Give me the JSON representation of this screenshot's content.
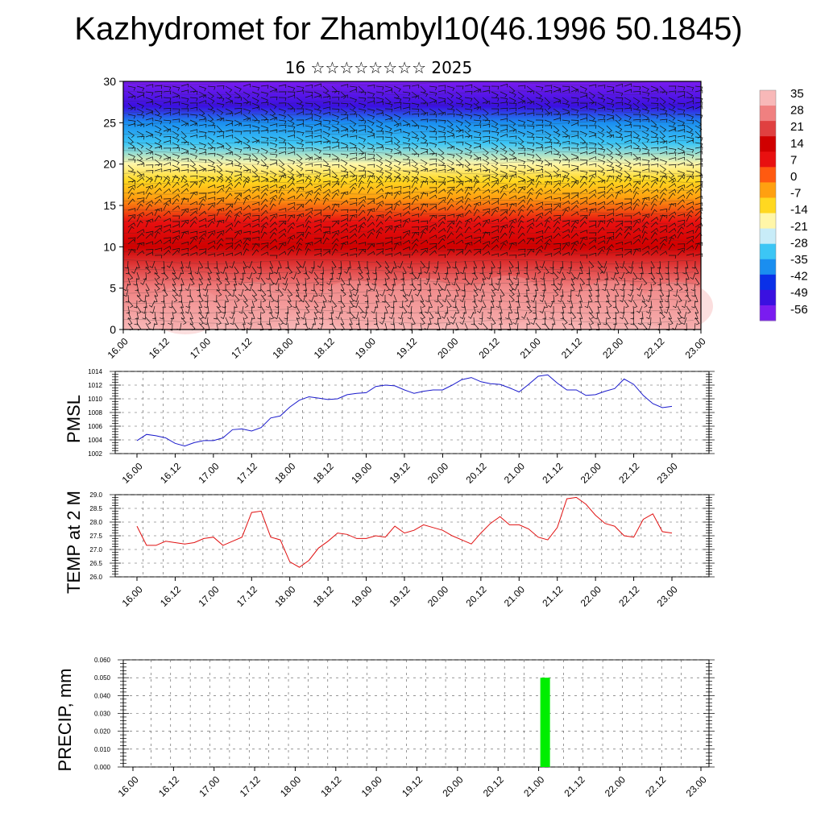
{
  "title": "Kazhydromet for Zhambyl10(46.1996 50.1845)",
  "subtitle": "16 ☆☆☆☆☆☆☆☆ 2025",
  "time_ticks": [
    "16.00",
    "16.12",
    "17.00",
    "17.12",
    "18.00",
    "18.12",
    "19.00",
    "19.12",
    "20.00",
    "20.12",
    "21.00",
    "21.12",
    "22.00",
    "22.12",
    "23.00"
  ],
  "chart_data": [
    {
      "type": "heatmap",
      "title": "",
      "xlabel": "",
      "ylabel": "",
      "x": [
        "16.00",
        "16.12",
        "17.00",
        "17.12",
        "18.00",
        "18.12",
        "19.00",
        "19.12",
        "20.00",
        "20.12",
        "21.00",
        "21.12",
        "22.00",
        "22.12",
        "23.00"
      ],
      "ylim": [
        0,
        30
      ],
      "yticks": [
        "0",
        "5",
        "10",
        "15",
        "20",
        "25",
        "30"
      ],
      "colorbar_labels": [
        "35",
        "28",
        "21",
        "14",
        "7",
        "0",
        "-7",
        "-14",
        "-21",
        "-28",
        "-35",
        "-42",
        "-49",
        "-56"
      ],
      "colors": {
        "levels": [
          "#7a1cf0",
          "#3a10e0",
          "#0a30e8",
          "#1a8ef0",
          "#3cc6f5",
          "#c8ecf8",
          "#fff6a8",
          "#ffd820",
          "#ffa010",
          "#ff5a10",
          "#e81010",
          "#d00000",
          "#e04040",
          "#f08080",
          "#f8b8b8"
        ]
      },
      "temperature_profile": [
        {
          "height": 0,
          "t": 32
        },
        {
          "height": 5,
          "t": 25
        },
        {
          "height": 10,
          "t": 14
        },
        {
          "height": 13,
          "t": 4
        },
        {
          "height": 16,
          "t": -8
        },
        {
          "height": 18,
          "t": -18
        },
        {
          "height": 20,
          "t": -32
        },
        {
          "height": 22.5,
          "t": -46
        },
        {
          "height": 25,
          "t": -56
        },
        {
          "height": 27,
          "t": -52
        },
        {
          "height": 30,
          "t": -50
        }
      ],
      "wind_barbs": "dense field over full panel"
    },
    {
      "type": "line",
      "ylabel": "PMSL",
      "ylim": [
        1002,
        1014
      ],
      "yticks": [
        "1002",
        "1004",
        "1006",
        "1008",
        "1010",
        "1012",
        "1014"
      ],
      "color": "#1a1acc",
      "values": [
        1003.9,
        1004.8,
        1004.6,
        1004.3,
        1003.5,
        1003.1,
        1003.6,
        1003.9,
        1003.9,
        1004.3,
        1005.5,
        1005.6,
        1005.3,
        1005.8,
        1007.2,
        1007.5,
        1008.8,
        1009.8,
        1010.3,
        1010.1,
        1009.9,
        1010.0,
        1010.6,
        1010.8,
        1010.9,
        1011.8,
        1012.0,
        1011.9,
        1011.3,
        1010.8,
        1011.1,
        1011.3,
        1011.3,
        1012.0,
        1012.8,
        1013.1,
        1012.5,
        1012.2,
        1012.1,
        1011.6,
        1011.0,
        1012.1,
        1013.3,
        1013.5,
        1012.3,
        1011.3,
        1011.3,
        1010.5,
        1010.6,
        1011.1,
        1011.5,
        1012.9,
        1012.1,
        1010.5,
        1009.3,
        1008.7,
        1008.9
      ]
    },
    {
      "type": "line",
      "ylabel": "TEMP at 2 M",
      "ylim": [
        26.0,
        29.0
      ],
      "yticks": [
        "26.0",
        "26.5",
        "27.0",
        "27.5",
        "28.0",
        "28.5",
        "29.0"
      ],
      "color": "#e01010",
      "values": [
        27.85,
        27.15,
        27.15,
        27.3,
        27.25,
        27.2,
        27.25,
        27.4,
        27.45,
        27.15,
        27.3,
        27.45,
        28.35,
        28.4,
        27.45,
        27.35,
        26.55,
        26.35,
        26.6,
        27.05,
        27.3,
        27.6,
        27.55,
        27.4,
        27.4,
        27.5,
        27.45,
        27.85,
        27.6,
        27.7,
        27.9,
        27.8,
        27.7,
        27.5,
        27.35,
        27.2,
        27.6,
        27.95,
        28.2,
        27.9,
        27.9,
        27.75,
        27.45,
        27.35,
        27.8,
        28.85,
        28.9,
        28.65,
        28.25,
        27.95,
        27.85,
        27.5,
        27.45,
        28.1,
        28.3,
        27.65,
        27.6
      ]
    },
    {
      "type": "bar",
      "ylabel": "PRECIP, mm",
      "ylim": [
        0.0,
        0.06
      ],
      "yticks": [
        "0.000",
        "0.010",
        "0.020",
        "0.030",
        "0.040",
        "0.050",
        "0.060"
      ],
      "color": "#00ee00",
      "bars": [
        {
          "x": 21.08,
          "value": 0.05
        }
      ]
    }
  ]
}
